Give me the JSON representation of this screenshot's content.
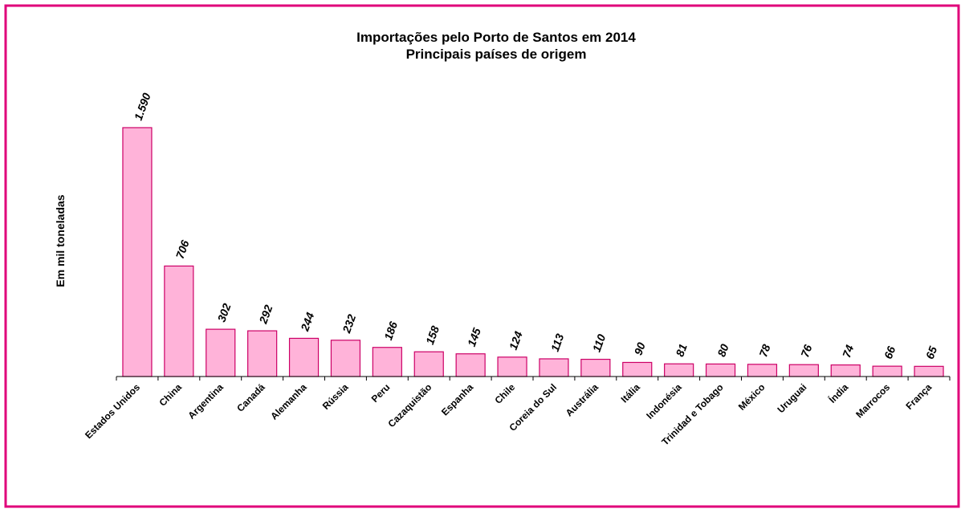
{
  "chart_data": {
    "type": "bar",
    "title": "Importações pelo Porto de Santos em 2014",
    "subtitle": "Principais países de origem",
    "y_label": "Em  mil toneladas",
    "categories": [
      "Estados Unidos",
      "China",
      "Argentina",
      "Canadá",
      "Alemanha",
      "Rússia",
      "Peru",
      "Cazaquistão",
      "Espanha",
      "Chile",
      "Coreia do Sul",
      "Austrália",
      "Itália",
      "Indonésia",
      "Trinidad e Tobago",
      "México",
      "Uruguai",
      "Índia",
      "Marrocos",
      "França"
    ],
    "values": [
      1590,
      706,
      302,
      292,
      244,
      232,
      186,
      158,
      145,
      124,
      113,
      110,
      90,
      81,
      80,
      78,
      76,
      74,
      66,
      65
    ],
    "value_labels": [
      "1.590",
      "706",
      "302",
      "292",
      "244",
      "232",
      "186",
      "158",
      "145",
      "124",
      "113",
      "110",
      "90",
      "81",
      "80",
      "78",
      "76",
      "74",
      "66",
      "65"
    ],
    "color": "#ffb3d9",
    "edge_color": "#cc0066"
  }
}
